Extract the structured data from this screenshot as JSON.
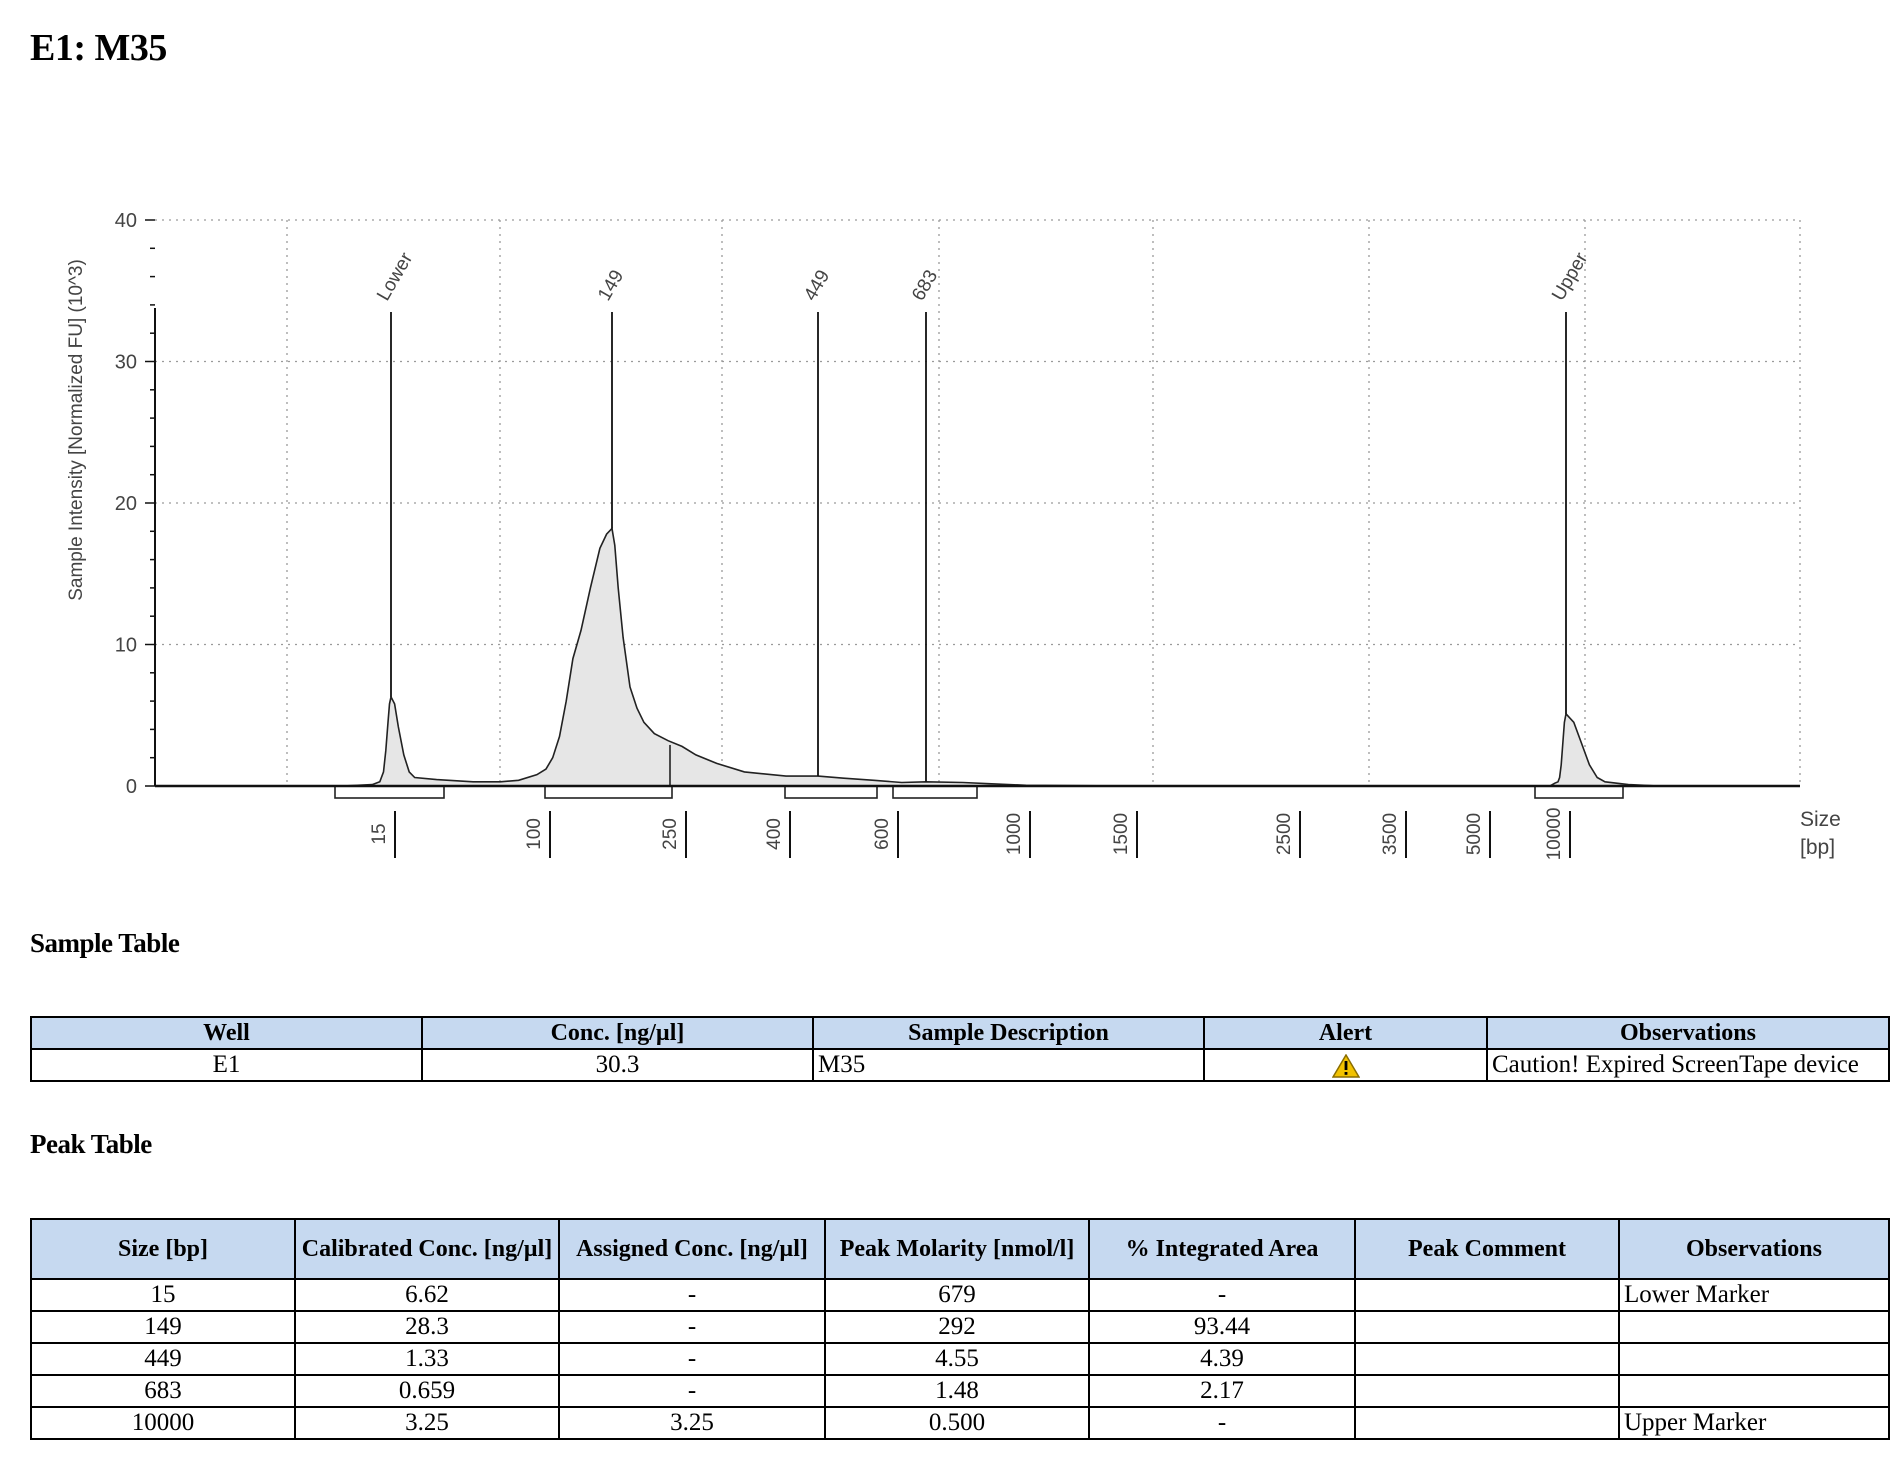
{
  "page_title": "E1: M35",
  "chart_data": {
    "type": "area",
    "title": "",
    "ylabel": "Sample Intensity [Normalized FU] (10^3)",
    "xlabel": "Size\n[bp]",
    "xlabel_lines": [
      "Size",
      "[bp]"
    ],
    "ylim": [
      0,
      40
    ],
    "y_ticks": [
      0,
      10,
      20,
      30,
      40
    ],
    "y_tick_labels": [
      "0",
      "10",
      "20",
      "30",
      "40"
    ],
    "grid": true,
    "ladder_ticks": [
      "15",
      "100",
      "250",
      "400",
      "600",
      "1000",
      "1500",
      "2500",
      "3500",
      "5000",
      "10000"
    ],
    "ladder_tick_pos": [
      15,
      100,
      250,
      400,
      600,
      1000,
      1500,
      2500,
      3500,
      5000,
      10000
    ],
    "peaks": [
      {
        "label": "Lower",
        "size": 15,
        "height": 6.3
      },
      {
        "label": "149",
        "size": 149,
        "height": 18.2
      },
      {
        "label": "449",
        "size": 449,
        "height": 0.7
      },
      {
        "label": "683",
        "size": 683,
        "height": 0.3
      },
      {
        "label": "Upper",
        "size": 10000,
        "height": 5.1
      }
    ],
    "trace": [
      [
        -300,
        0.0
      ],
      [
        -50,
        0.0
      ],
      [
        -10,
        0.1
      ],
      [
        0,
        0.3
      ],
      [
        5,
        1.0
      ],
      [
        8,
        2.5
      ],
      [
        11,
        4.5
      ],
      [
        13,
        5.8
      ],
      [
        15,
        6.3
      ],
      [
        17,
        5.8
      ],
      [
        19,
        4.2
      ],
      [
        22,
        2.2
      ],
      [
        25,
        1.0
      ],
      [
        28,
        0.6
      ],
      [
        40,
        0.45
      ],
      [
        60,
        0.3
      ],
      [
        75,
        0.3
      ],
      [
        85,
        0.4
      ],
      [
        95,
        0.8
      ],
      [
        100,
        1.2
      ],
      [
        105,
        2.0
      ],
      [
        110,
        3.5
      ],
      [
        115,
        6.0
      ],
      [
        120,
        9.0
      ],
      [
        126,
        11.0
      ],
      [
        133,
        14.0
      ],
      [
        140,
        16.8
      ],
      [
        145,
        17.8
      ],
      [
        149,
        18.2
      ],
      [
        153,
        17.0
      ],
      [
        158,
        14.0
      ],
      [
        165,
        10.5
      ],
      [
        175,
        7.0
      ],
      [
        185,
        5.5
      ],
      [
        195,
        4.5
      ],
      [
        210,
        3.7
      ],
      [
        230,
        3.2
      ],
      [
        250,
        2.8
      ],
      [
        270,
        2.2
      ],
      [
        300,
        1.6
      ],
      [
        340,
        1.0
      ],
      [
        400,
        0.7
      ],
      [
        449,
        0.7
      ],
      [
        500,
        0.55
      ],
      [
        560,
        0.4
      ],
      [
        620,
        0.25
      ],
      [
        683,
        0.3
      ],
      [
        800,
        0.25
      ],
      [
        900,
        0.15
      ],
      [
        1000,
        0.05
      ],
      [
        1500,
        0.0
      ],
      [
        9000,
        0.0
      ],
      [
        9300,
        0.2
      ],
      [
        9500,
        0.3
      ],
      [
        9600,
        0.6
      ],
      [
        9700,
        1.5
      ],
      [
        9800,
        3.0
      ],
      [
        9900,
        4.5
      ],
      [
        10000,
        5.1
      ],
      [
        10100,
        4.5
      ],
      [
        10200,
        3.0
      ],
      [
        10300,
        1.5
      ],
      [
        10400,
        0.6
      ],
      [
        10500,
        0.3
      ],
      [
        10800,
        0.1
      ],
      [
        11200,
        0.0
      ],
      [
        13000,
        0.0
      ]
    ]
  },
  "sample_table": {
    "title": "Sample Table",
    "headers": [
      "Well",
      "Conc. [ng/µl]",
      "Sample Description",
      "Alert",
      "Observations"
    ],
    "rows": [
      [
        "E1",
        "30.3",
        "M35",
        "warning-icon",
        "Caution! Expired ScreenTape device"
      ]
    ]
  },
  "peak_table": {
    "title": "Peak Table",
    "headers": [
      "Size [bp]",
      "Calibrated Conc. [ng/µl]",
      "Assigned Conc. [ng/µl]",
      "Peak Molarity [nmol/l]",
      "% Integrated Area",
      "Peak Comment",
      "Observations"
    ],
    "rows": [
      [
        "15",
        "6.62",
        "-",
        "679",
        "-",
        "",
        "Lower Marker"
      ],
      [
        "149",
        "28.3",
        "-",
        "292",
        "93.44",
        "",
        ""
      ],
      [
        "449",
        "1.33",
        "-",
        "4.55",
        "4.39",
        "",
        ""
      ],
      [
        "683",
        "0.659",
        "-",
        "1.48",
        "2.17",
        "",
        ""
      ],
      [
        "10000",
        "3.25",
        "3.25",
        "0.500",
        "-",
        "",
        "Upper Marker"
      ]
    ]
  },
  "colors": {
    "header_bg": "#c6d9f0",
    "trace_fill": "#e6e6e6",
    "warning": "#f2c200"
  }
}
